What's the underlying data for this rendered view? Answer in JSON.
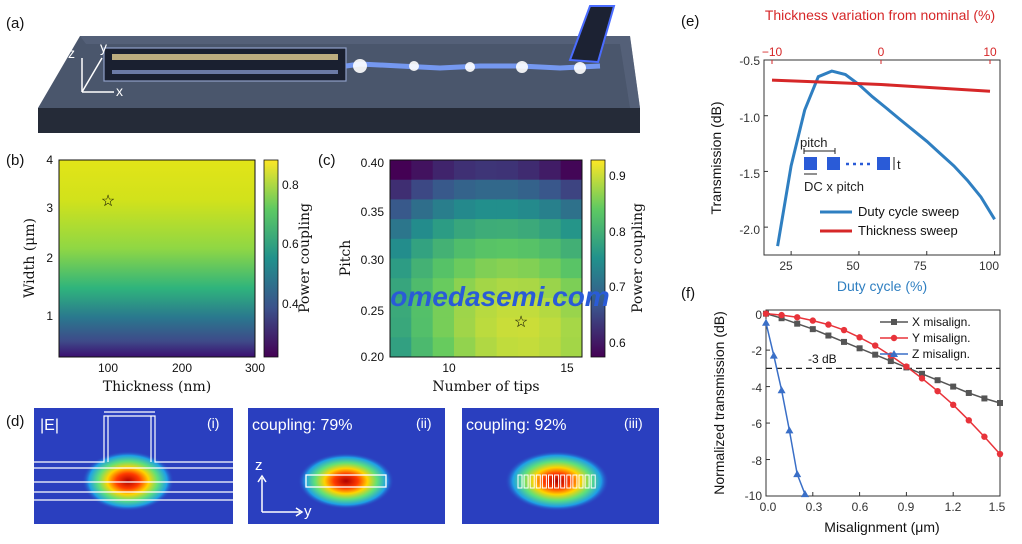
{
  "panel_labels": {
    "a": "(a)",
    "b": "(b)",
    "c": "(c)",
    "d": "(d)",
    "e": "(e)",
    "f": "(f)"
  },
  "panel_a": {
    "axes": [
      "z",
      "y",
      "x"
    ]
  },
  "panel_b": {
    "xlabel": "Thickness (nm)",
    "ylabel": "Width (μm)",
    "xticks": [
      "100",
      "200",
      "300"
    ],
    "yticks": [
      "1",
      "2",
      "3",
      "4"
    ],
    "colorbar_label": "Power coupling",
    "colorbar_ticks": [
      "0.4",
      "0.6",
      "0.8"
    ],
    "marker": {
      "thickness": 110,
      "width": 3.2
    }
  },
  "panel_c": {
    "xlabel": "Number of tips",
    "ylabel": "Pitch",
    "xticks": [
      "10",
      "15"
    ],
    "yticks": [
      "0.20",
      "0.25",
      "0.30",
      "0.35",
      "0.40"
    ],
    "colorbar_label": "Power coupling",
    "colorbar_ticks": [
      "0.6",
      "0.7",
      "0.8",
      "0.9"
    ],
    "marker": {
      "tips": 13,
      "pitch": 0.24
    }
  },
  "panel_d": {
    "subpanels": [
      {
        "tag": "(i)",
        "label": "|E|"
      },
      {
        "tag": "(ii)",
        "label": "coupling: 79%"
      },
      {
        "tag": "(iii)",
        "label": "coupling: 92%"
      }
    ],
    "axes": [
      "z",
      "y"
    ]
  },
  "panel_e": {
    "xlabel": "Duty cycle (%)",
    "top_xlabel": "Thickness variation from nominal (%)",
    "ylabel": "Transmission (dB)",
    "xticks": [
      "25",
      "50",
      "75",
      "100"
    ],
    "top_xticks": [
      "−10",
      "0",
      "10"
    ],
    "yticks": [
      "-0.5",
      "-1.0",
      "-1.5",
      "-2.0"
    ],
    "inset": {
      "pitch": "pitch",
      "dc": "DC x pitch",
      "t": "t"
    },
    "colors": {
      "duty": "#2f7fc1",
      "thickness": "#d62728",
      "top_axis": "#d62728",
      "bottom_label": "#2f7fc1"
    }
  },
  "panel_f": {
    "xlabel": "Misalignment (μm)",
    "ylabel": "Normalized transmission (dB)",
    "xticks": [
      "0.0",
      "0.3",
      "0.6",
      "0.9",
      "1.2",
      "1.5"
    ],
    "yticks": [
      "0",
      "-2",
      "-4",
      "-6",
      "-8",
      "-10"
    ],
    "threshold_label": "-3 dB"
  },
  "watermark": "omedasemi.com",
  "chart_data": [
    {
      "type": "line",
      "xlabel": "Duty cycle (%)",
      "ylabel": "Transmission (dB)",
      "xlim": [
        15,
        102
      ],
      "ylim": [
        -2.25,
        -0.5
      ],
      "series": [
        {
          "name": "Duty cycle sweep",
          "color": "#2f7fc1",
          "x": [
            20,
            25,
            30,
            35,
            40,
            45,
            50,
            55,
            60,
            65,
            70,
            75,
            80,
            85,
            90,
            95,
            100
          ],
          "y": [
            -2.17,
            -1.45,
            -0.95,
            -0.65,
            -0.6,
            -0.63,
            -0.72,
            -0.83,
            -0.93,
            -1.03,
            -1.13,
            -1.23,
            -1.34,
            -1.45,
            -1.58,
            -1.73,
            -1.93
          ]
        },
        {
          "name": "Thickness sweep",
          "color": "#d62728",
          "x_top": [
            -10,
            -5,
            0,
            5,
            10
          ],
          "y": [
            -0.68,
            -0.7,
            -0.72,
            -0.75,
            -0.78
          ]
        }
      ]
    },
    {
      "type": "line",
      "xlabel": "Misalignment (μm)",
      "ylabel": "Normalized transmission (dB)",
      "xlim": [
        0,
        1.5
      ],
      "ylim": [
        -10,
        0.2
      ],
      "series": [
        {
          "name": "X misalign.",
          "color": "#555555",
          "x": [
            0,
            0.1,
            0.2,
            0.3,
            0.4,
            0.5,
            0.6,
            0.7,
            0.8,
            0.9,
            1.0,
            1.1,
            1.2,
            1.3,
            1.4,
            1.5
          ],
          "y": [
            0,
            -0.25,
            -0.55,
            -0.85,
            -1.2,
            -1.55,
            -1.9,
            -2.25,
            -2.6,
            -2.95,
            -3.3,
            -3.65,
            -4.0,
            -4.35,
            -4.65,
            -4.9
          ]
        },
        {
          "name": "Y misalign.",
          "color": "#e8333a",
          "x": [
            0,
            0.1,
            0.2,
            0.3,
            0.4,
            0.5,
            0.6,
            0.7,
            0.8,
            0.9,
            1.0,
            1.1,
            1.2,
            1.3,
            1.4,
            1.5
          ],
          "y": [
            0,
            -0.08,
            -0.2,
            -0.38,
            -0.6,
            -0.9,
            -1.3,
            -1.75,
            -2.3,
            -2.9,
            -3.55,
            -4.25,
            -5.0,
            -5.85,
            -6.75,
            -7.7
          ]
        },
        {
          "name": "Z misalign.",
          "color": "#3a6fc7",
          "x": [
            0,
            0.05,
            0.1,
            0.15,
            0.2,
            0.25
          ],
          "y": [
            -0.5,
            -2.3,
            -4.2,
            -6.4,
            -8.8,
            -9.9
          ]
        }
      ],
      "annotations": [
        "-3 dB"
      ]
    }
  ]
}
